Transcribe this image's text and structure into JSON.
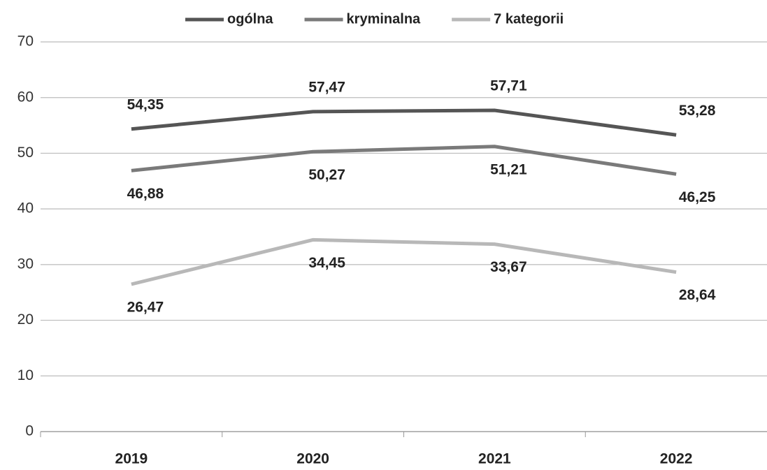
{
  "chart_data": {
    "type": "line",
    "categories": [
      "2019",
      "2020",
      "2021",
      "2022"
    ],
    "series": [
      {
        "name": "ogólna",
        "color": "#555555",
        "values": [
          54.35,
          57.47,
          57.71,
          53.28
        ],
        "value_labels": [
          "54,35",
          "57,47",
          "57,71",
          "53,28"
        ]
      },
      {
        "name": "kryminalna",
        "color": "#7a7a7a",
        "values": [
          46.88,
          50.27,
          51.21,
          46.25
        ],
        "value_labels": [
          "46,88",
          "50,27",
          "51,21",
          "46,25"
        ]
      },
      {
        "name": "7 kategorii",
        "color": "#b8b8b8",
        "values": [
          26.47,
          34.45,
          33.67,
          28.64
        ],
        "value_labels": [
          "26,47",
          "34,45",
          "33,67",
          "28,64"
        ]
      }
    ],
    "ylim": [
      0,
      70
    ],
    "yticks": [
      0,
      10,
      20,
      30,
      40,
      50,
      60,
      70
    ],
    "grid": true,
    "legend": "top"
  }
}
